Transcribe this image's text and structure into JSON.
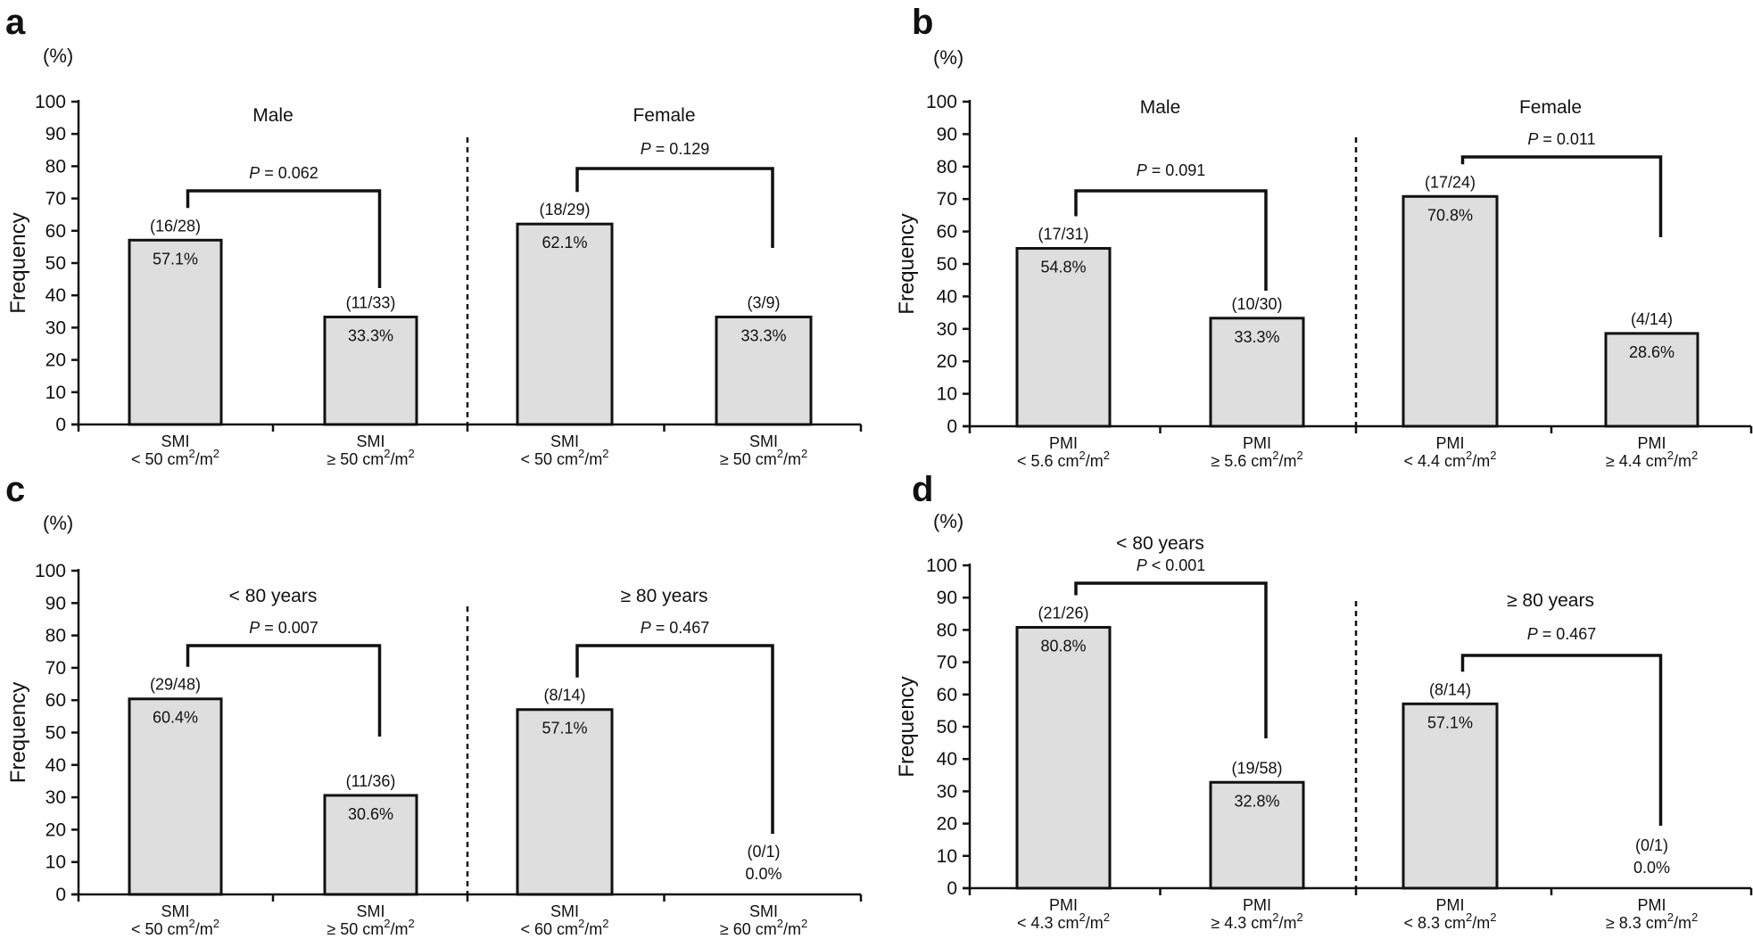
{
  "chart_data": [
    {
      "type": "bar",
      "panel": "a",
      "unit_label": "(%)",
      "ylabel": "Frequency",
      "ylim": [
        0,
        100
      ],
      "yticks": [
        "0",
        "10",
        "20",
        "30",
        "40",
        "50",
        "60",
        "70",
        "80",
        "90",
        "100"
      ],
      "groups": [
        {
          "title": "Male",
          "p_label": "P",
          "p_text": " = 0.062",
          "bars": [
            {
              "value": 57.1,
              "pct_label": "57.1%",
              "frac": "(16/28)",
              "cat_line1": "SMI",
              "cat_line2_prefix": "< 50 cm",
              "sup1": "2",
              "mid": "/m",
              "sup2": "2"
            },
            {
              "value": 33.3,
              "pct_label": "33.3%",
              "frac": "(11/33)",
              "cat_line1": "SMI",
              "cat_line2_prefix": "≥ 50 cm",
              "sup1": "2",
              "mid": "/m",
              "sup2": "2"
            }
          ]
        },
        {
          "title": "Female",
          "p_label": "P",
          "p_text": " = 0.129",
          "bars": [
            {
              "value": 62.1,
              "pct_label": "62.1%",
              "frac": "(18/29)",
              "cat_line1": "SMI",
              "cat_line2_prefix": "< 50 cm",
              "sup1": "2",
              "mid": "/m",
              "sup2": "2"
            },
            {
              "value": 33.3,
              "pct_label": "33.3%",
              "frac": "(3/9)",
              "cat_line1": "SMI",
              "cat_line2_prefix": "≥ 50 cm",
              "sup1": "2",
              "mid": "/m",
              "sup2": "2"
            }
          ]
        }
      ]
    },
    {
      "type": "bar",
      "panel": "b",
      "unit_label": "(%)",
      "ylabel": "Frequency",
      "ylim": [
        0,
        100
      ],
      "yticks": [
        "0",
        "10",
        "20",
        "30",
        "40",
        "50",
        "60",
        "70",
        "80",
        "90",
        "100"
      ],
      "groups": [
        {
          "title": "Male",
          "p_label": "P",
          "p_text": " = 0.091",
          "bars": [
            {
              "value": 54.8,
              "pct_label": "54.8%",
              "frac": "(17/31)",
              "cat_line1": "PMI",
              "cat_line2_prefix": "< 5.6 cm",
              "sup1": "2",
              "mid": "/m",
              "sup2": "2"
            },
            {
              "value": 33.3,
              "pct_label": "33.3%",
              "frac": "(10/30)",
              "cat_line1": "PMI",
              "cat_line2_prefix": "≥ 5.6 cm",
              "sup1": "2",
              "mid": "/m",
              "sup2": "2"
            }
          ]
        },
        {
          "title": "Female",
          "p_label": "P",
          "p_text": " = 0.011",
          "bars": [
            {
              "value": 70.8,
              "pct_label": "70.8%",
              "frac": "(17/24)",
              "cat_line1": "PMI",
              "cat_line2_prefix": "< 4.4 cm",
              "sup1": "2",
              "mid": "/m",
              "sup2": "2"
            },
            {
              "value": 28.6,
              "pct_label": "28.6%",
              "frac": "(4/14)",
              "cat_line1": "PMI",
              "cat_line2_prefix": "≥ 4.4 cm",
              "sup1": "2",
              "mid": "/m",
              "sup2": "2"
            }
          ]
        }
      ]
    },
    {
      "type": "bar",
      "panel": "c",
      "unit_label": "(%)",
      "ylabel": "Frequency",
      "ylim": [
        0,
        100
      ],
      "yticks": [
        "0",
        "10",
        "20",
        "30",
        "40",
        "50",
        "60",
        "70",
        "80",
        "90",
        "100"
      ],
      "groups": [
        {
          "title": "< 80 years",
          "p_label": "P",
          "p_text": " = 0.007",
          "bars": [
            {
              "value": 60.4,
              "pct_label": "60.4%",
              "frac": "(29/48)",
              "cat_line1": "SMI",
              "cat_line2_prefix": "< 50 cm",
              "sup1": "2",
              "mid": "/m",
              "sup2": "2"
            },
            {
              "value": 30.6,
              "pct_label": "30.6%",
              "frac": "(11/36)",
              "cat_line1": "SMI",
              "cat_line2_prefix": "≥ 50 cm",
              "sup1": "2",
              "mid": "/m",
              "sup2": "2"
            }
          ]
        },
        {
          "title": "≥ 80 years",
          "p_label": "P",
          "p_text": " = 0.467",
          "bars": [
            {
              "value": 57.1,
              "pct_label": "57.1%",
              "frac": "(8/14)",
              "cat_line1": "SMI",
              "cat_line2_prefix": "< 60 cm",
              "sup1": "2",
              "mid": "/m",
              "sup2": "2"
            },
            {
              "value": 0.0,
              "pct_label": "0.0%",
              "frac": "(0/1)",
              "cat_line1": "SMI",
              "cat_line2_prefix": "≥ 60 cm",
              "sup1": "2",
              "mid": "/m",
              "sup2": "2"
            }
          ]
        }
      ]
    },
    {
      "type": "bar",
      "panel": "d",
      "unit_label": "(%)",
      "ylabel": "Frequency",
      "ylim": [
        0,
        100
      ],
      "yticks": [
        "0",
        "10",
        "20",
        "30",
        "40",
        "50",
        "60",
        "70",
        "80",
        "90",
        "100"
      ],
      "groups": [
        {
          "title": "< 80 years",
          "p_label": "P",
          "p_text": " < 0.001",
          "bars": [
            {
              "value": 80.8,
              "pct_label": "80.8%",
              "frac": "(21/26)",
              "cat_line1": "PMI",
              "cat_line2_prefix": "< 4.3 cm",
              "sup1": "2",
              "mid": "/m",
              "sup2": "2"
            },
            {
              "value": 32.8,
              "pct_label": "32.8%",
              "frac": "(19/58)",
              "cat_line1": "PMI",
              "cat_line2_prefix": "≥ 4.3 cm",
              "sup1": "2",
              "mid": "/m",
              "sup2": "2"
            }
          ]
        },
        {
          "title": "≥ 80 years",
          "p_label": "P",
          "p_text": " = 0.467",
          "bars": [
            {
              "value": 57.1,
              "pct_label": "57.1%",
              "frac": "(8/14)",
              "cat_line1": "PMI",
              "cat_line2_prefix": "< 8.3 cm",
              "sup1": "2",
              "mid": "/m",
              "sup2": "2"
            },
            {
              "value": 0.0,
              "pct_label": "0.0%",
              "frac": "(0/1)",
              "cat_line1": "PMI",
              "cat_line2_prefix": "≥ 8.3 cm",
              "sup1": "2",
              "mid": "/m",
              "sup2": "2"
            }
          ]
        }
      ]
    }
  ]
}
